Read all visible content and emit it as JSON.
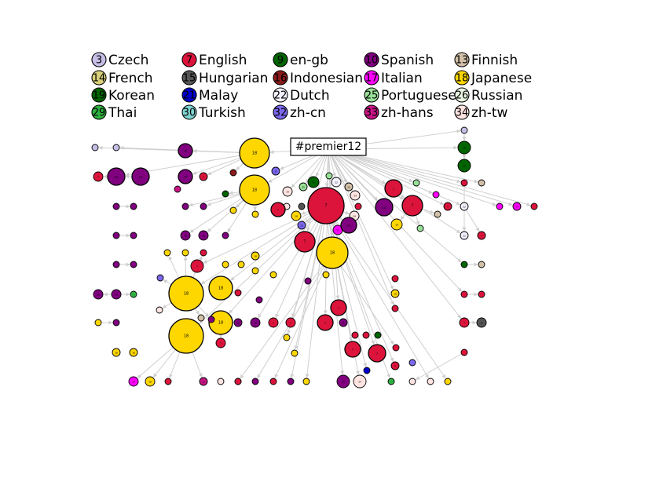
{
  "root": {
    "label": "#premier12"
  },
  "languages": [
    {
      "key": "cs",
      "code": "3",
      "name": "Czech",
      "color": "#c8bfe7"
    },
    {
      "key": "en",
      "code": "7",
      "name": "English",
      "color": "#dc143c"
    },
    {
      "key": "engb",
      "code": "9",
      "name": "en-gb",
      "color": "#006400"
    },
    {
      "key": "es",
      "code": "10",
      "name": "Spanish",
      "color": "#800080"
    },
    {
      "key": "fi",
      "code": "13",
      "name": "Finnish",
      "color": "#d2c0a8"
    },
    {
      "key": "fr",
      "code": "14",
      "name": "French",
      "color": "#d9d07a"
    },
    {
      "key": "hu",
      "code": "15",
      "name": "Hungarian",
      "color": "#555555"
    },
    {
      "key": "id",
      "code": "16",
      "name": "Indonesian",
      "color": "#8b1a1a"
    },
    {
      "key": "it",
      "code": "17",
      "name": "Italian",
      "color": "#ff00ff"
    },
    {
      "key": "ja",
      "code": "18",
      "name": "Japanese",
      "color": "#ffd700"
    },
    {
      "key": "ko",
      "code": "19",
      "name": "Korean",
      "color": "#006400"
    },
    {
      "key": "ms",
      "code": "21",
      "name": "Malay",
      "color": "#0000cd"
    },
    {
      "key": "nl",
      "code": "22",
      "name": "Dutch",
      "color": "#f2f2ff"
    },
    {
      "key": "pt",
      "code": "25",
      "name": "Portuguese",
      "color": "#98e098"
    },
    {
      "key": "ru",
      "code": "26",
      "name": "Russian",
      "color": "#e8f4e0"
    },
    {
      "key": "th",
      "code": "29",
      "name": "Thai",
      "color": "#2fb040"
    },
    {
      "key": "tr",
      "code": "30",
      "name": "Turkish",
      "color": "#7fd4d0"
    },
    {
      "key": "zhcn",
      "code": "32",
      "name": "zh-cn",
      "color": "#7b68ee"
    },
    {
      "key": "zhhans",
      "code": "33",
      "name": "zh-hans",
      "color": "#c71585"
    },
    {
      "key": "zhtw",
      "code": "34",
      "name": "zh-tw",
      "color": "#ffe4e1"
    }
  ],
  "nodes": [
    {
      "id": 1,
      "lang": "cs"
    },
    {
      "id": 2,
      "lang": "cs"
    },
    {
      "id": 3,
      "lang": "es"
    },
    {
      "id": 4,
      "lang": "ja"
    },
    {
      "id": 5,
      "lang": "cs"
    },
    {
      "id": 6,
      "lang": "ko"
    },
    {
      "id": 7,
      "lang": "ko"
    },
    {
      "id": 8,
      "lang": "en"
    },
    {
      "id": 9,
      "lang": "es"
    },
    {
      "id": 10,
      "lang": "es"
    },
    {
      "id": 11,
      "lang": "es"
    },
    {
      "id": 12,
      "lang": "en"
    },
    {
      "id": 13,
      "lang": "id"
    },
    {
      "id": 14,
      "lang": "zhcn"
    },
    {
      "id": 15,
      "lang": "zhhans"
    },
    {
      "id": 16,
      "lang": "ja"
    },
    {
      "id": 17,
      "lang": "es"
    },
    {
      "id": 18,
      "lang": "es"
    },
    {
      "id": 19,
      "lang": "es"
    },
    {
      "id": 20,
      "lang": "es"
    },
    {
      "id": 21,
      "lang": "ja"
    },
    {
      "id": 22,
      "lang": "engb"
    },
    {
      "id": 23,
      "lang": "zhtw"
    },
    {
      "id": 24,
      "lang": "pt"
    },
    {
      "id": 25,
      "lang": "engb"
    },
    {
      "id": 26,
      "lang": "pt"
    },
    {
      "id": 27,
      "lang": "nl"
    },
    {
      "id": 28,
      "lang": "fi"
    },
    {
      "id": 29,
      "lang": "zhtw"
    },
    {
      "id": 30,
      "lang": "zhtw"
    },
    {
      "id": 31,
      "lang": "zhtw"
    },
    {
      "id": 32,
      "lang": "en"
    },
    {
      "id": 33,
      "lang": "ja"
    },
    {
      "id": 34,
      "lang": "hu"
    },
    {
      "id": 35,
      "lang": "zhcn"
    },
    {
      "id": 36,
      "lang": "en"
    },
    {
      "id": 37,
      "lang": "es"
    },
    {
      "id": 38,
      "lang": "it"
    },
    {
      "id": 39,
      "lang": "en"
    },
    {
      "id": 40,
      "lang": "en"
    },
    {
      "id": 41,
      "lang": "ja"
    },
    {
      "id": 42,
      "lang": "es"
    },
    {
      "id": 43,
      "lang": "en"
    },
    {
      "id": 44,
      "lang": "pt"
    },
    {
      "id": 45,
      "lang": "ja"
    },
    {
      "id": 46,
      "lang": "en"
    },
    {
      "id": 47,
      "lang": "pt"
    },
    {
      "id": 48,
      "lang": "it"
    },
    {
      "id": 49,
      "lang": "fi"
    },
    {
      "id": 50,
      "lang": "en"
    },
    {
      "id": 51,
      "lang": "nl"
    },
    {
      "id": 52,
      "lang": "fi"
    },
    {
      "id": 53,
      "lang": "it"
    },
    {
      "id": 54,
      "lang": "it"
    },
    {
      "id": 55,
      "lang": "en"
    },
    {
      "id": 56,
      "lang": "es"
    },
    {
      "id": 57,
      "lang": "es"
    },
    {
      "id": 58,
      "lang": "es"
    },
    {
      "id": 59,
      "lang": "es"
    },
    {
      "id": 60,
      "lang": "es"
    },
    {
      "id": 61,
      "lang": "es"
    },
    {
      "id": 62,
      "lang": "es"
    },
    {
      "id": 63,
      "lang": "nl"
    },
    {
      "id": 64,
      "lang": "en"
    },
    {
      "id": 65,
      "lang": "ja"
    },
    {
      "id": 66,
      "lang": "ja"
    },
    {
      "id": 67,
      "lang": "en"
    },
    {
      "id": 68,
      "lang": "ja"
    },
    {
      "id": 69,
      "lang": "ja"
    },
    {
      "id": 70,
      "lang": "ja"
    },
    {
      "id": 71,
      "lang": "ja"
    },
    {
      "id": 72,
      "lang": "engb"
    },
    {
      "id": 73,
      "lang": "fi"
    },
    {
      "id": 74,
      "lang": "es"
    },
    {
      "id": 75,
      "lang": "es"
    },
    {
      "id": 76,
      "lang": "th"
    },
    {
      "id": 77,
      "lang": "zhcn"
    },
    {
      "id": 78,
      "lang": "ja"
    },
    {
      "id": 79,
      "lang": "ja"
    },
    {
      "id": 80,
      "lang": "zhtw"
    },
    {
      "id": 81,
      "lang": "en"
    },
    {
      "id": 82,
      "lang": "en"
    },
    {
      "id": 83,
      "lang": "en"
    },
    {
      "id": 84,
      "lang": "ja"
    },
    {
      "id": 85,
      "lang": "fi"
    },
    {
      "id": 86,
      "lang": "es"
    },
    {
      "id": 87,
      "lang": "es"
    },
    {
      "id": 88,
      "lang": "en"
    },
    {
      "id": 89,
      "lang": "en"
    },
    {
      "id": 90,
      "lang": "ja"
    },
    {
      "id": 91,
      "lang": "en"
    },
    {
      "id": 92,
      "lang": "en"
    },
    {
      "id": 93,
      "lang": "ja"
    },
    {
      "id": 94,
      "lang": "es"
    },
    {
      "id": 95,
      "lang": "es"
    },
    {
      "id": 96,
      "lang": "en"
    },
    {
      "id": 97,
      "lang": "en"
    },
    {
      "id": 98,
      "lang": "en"
    },
    {
      "id": 99,
      "lang": "ja"
    },
    {
      "id": 100,
      "lang": "ja"
    },
    {
      "id": 101,
      "lang": "en"
    },
    {
      "id": 102,
      "lang": "ja"
    },
    {
      "id": 103,
      "lang": "en"
    },
    {
      "id": 104,
      "lang": "es"
    },
    {
      "id": 105,
      "lang": "en"
    },
    {
      "id": 106,
      "lang": "en"
    },
    {
      "id": 107,
      "lang": "en"
    },
    {
      "id": 108,
      "lang": "en"
    },
    {
      "id": 109,
      "lang": "en"
    },
    {
      "id": 110,
      "lang": "en"
    },
    {
      "id": 111,
      "lang": "ms"
    },
    {
      "id": 112,
      "lang": "en"
    },
    {
      "id": 113,
      "lang": "hu"
    },
    {
      "id": 114,
      "lang": "en"
    },
    {
      "id": 115,
      "lang": "zhhans"
    },
    {
      "id": 116,
      "lang": "it"
    },
    {
      "id": 117,
      "lang": "ja"
    },
    {
      "id": 118,
      "lang": "en"
    },
    {
      "id": 119,
      "lang": "zhtw"
    },
    {
      "id": 120,
      "lang": "zhtw"
    },
    {
      "id": 121,
      "lang": "en"
    },
    {
      "id": 122,
      "lang": "es"
    },
    {
      "id": 123,
      "lang": "en"
    },
    {
      "id": 124,
      "lang": "es"
    },
    {
      "id": 125,
      "lang": "ja"
    },
    {
      "id": 126,
      "lang": "es"
    },
    {
      "id": 127,
      "lang": "zhtw"
    },
    {
      "id": 128,
      "lang": "th"
    },
    {
      "id": 129,
      "lang": "zhtw"
    },
    {
      "id": 130,
      "lang": "zhtw"
    },
    {
      "id": 131,
      "lang": "ja"
    },
    {
      "id": 132,
      "lang": "ja"
    },
    {
      "id": 133,
      "lang": "engb"
    },
    {
      "id": 134,
      "lang": "zhcn"
    },
    {
      "id": 135,
      "lang": "es"
    },
    {
      "id": 136,
      "lang": "es"
    },
    {
      "id": 137,
      "lang": "ja"
    },
    {
      "id": 138,
      "lang": "ja"
    },
    {
      "id": 139,
      "lang": "ja"
    },
    {
      "id": 140,
      "lang": "ja"
    }
  ]
}
